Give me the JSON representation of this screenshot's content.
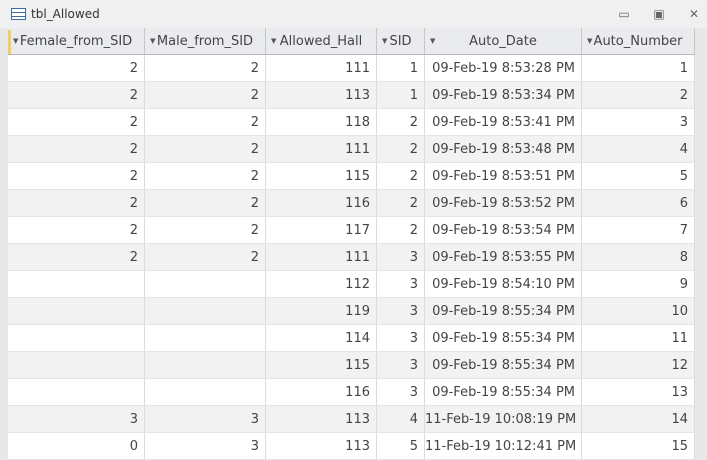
{
  "window": {
    "title": "tbl_Allowed",
    "icon": "table-icon"
  },
  "columns": [
    "Female_from_SID",
    "Male_from_SID",
    "Allowed_Hall",
    "SID",
    "Auto_Date",
    "Auto_Number"
  ],
  "rows": [
    [
      "2",
      "2",
      "111",
      "1",
      "09-Feb-19 8:53:28 PM",
      "1"
    ],
    [
      "2",
      "2",
      "113",
      "1",
      "09-Feb-19 8:53:34 PM",
      "2"
    ],
    [
      "2",
      "2",
      "118",
      "2",
      "09-Feb-19 8:53:41 PM",
      "3"
    ],
    [
      "2",
      "2",
      "111",
      "2",
      "09-Feb-19 8:53:48 PM",
      "4"
    ],
    [
      "2",
      "2",
      "115",
      "2",
      "09-Feb-19 8:53:51 PM",
      "5"
    ],
    [
      "2",
      "2",
      "116",
      "2",
      "09-Feb-19 8:53:52 PM",
      "6"
    ],
    [
      "2",
      "2",
      "117",
      "2",
      "09-Feb-19 8:53:54 PM",
      "7"
    ],
    [
      "2",
      "2",
      "111",
      "3",
      "09-Feb-19 8:53:55 PM",
      "8"
    ],
    [
      "",
      "",
      "112",
      "3",
      "09-Feb-19 8:54:10 PM",
      "9"
    ],
    [
      "",
      "",
      "119",
      "3",
      "09-Feb-19 8:55:34 PM",
      "10"
    ],
    [
      "",
      "",
      "114",
      "3",
      "09-Feb-19 8:55:34 PM",
      "11"
    ],
    [
      "",
      "",
      "115",
      "3",
      "09-Feb-19 8:55:34 PM",
      "12"
    ],
    [
      "",
      "",
      "116",
      "3",
      "09-Feb-19 8:55:34 PM",
      "13"
    ],
    [
      "3",
      "3",
      "113",
      "4",
      "11-Feb-19 10:08:19 PM",
      "14"
    ],
    [
      "0",
      "3",
      "113",
      "5",
      "11-Feb-19 10:12:41 PM",
      "15"
    ]
  ]
}
